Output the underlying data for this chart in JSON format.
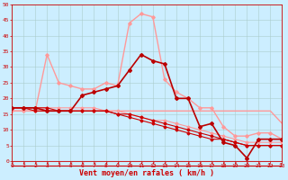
{
  "bg_color": "#cceeff",
  "grid_color": "#aacccc",
  "xlabel": "Vent moyen/en rafales ( km/h )",
  "xlabel_color": "#cc0000",
  "xlabel_fontsize": 6,
  "xtick_labels": [
    "0",
    "1",
    "2",
    "3",
    "4",
    "5",
    "6",
    "7",
    "8",
    "9",
    "10",
    "11",
    "12",
    "13",
    "14",
    "15",
    "16",
    "17",
    "18",
    "19",
    "20",
    "21",
    "22",
    "23"
  ],
  "ytick_labels": [
    "0",
    "5",
    "10",
    "15",
    "20",
    "25",
    "30",
    "35",
    "40",
    "45",
    "50"
  ],
  "ylim": [
    0,
    50
  ],
  "xlim": [
    0,
    23
  ],
  "line_pink_flat_x": [
    0,
    1,
    2,
    3,
    4,
    5,
    6,
    7,
    8,
    9,
    10,
    11,
    12,
    13,
    14,
    15,
    16,
    17,
    18,
    19,
    20,
    21,
    22,
    23
  ],
  "line_pink_flat_y": [
    16,
    16,
    16,
    16,
    16,
    16,
    16,
    16,
    16,
    16,
    16,
    16,
    16,
    16,
    16,
    16,
    16,
    16,
    16,
    16,
    16,
    16,
    16,
    12
  ],
  "line_pink_flat_color": "#ff9999",
  "line_pink_flat_lw": 1.0,
  "line_dark_red_x": [
    0,
    1,
    2,
    3,
    4,
    5,
    6,
    7,
    8,
    9,
    10,
    11,
    12,
    13,
    14,
    15,
    16,
    17,
    18,
    19,
    20,
    21,
    22,
    23
  ],
  "line_dark_red_y": [
    17,
    17,
    17,
    16,
    16,
    16,
    21,
    22,
    23,
    24,
    29,
    34,
    32,
    31,
    20,
    20,
    11,
    12,
    6,
    5,
    1,
    7,
    7,
    7
  ],
  "line_dark_red_color": "#bb0000",
  "line_dark_red_lw": 1.2,
  "line_pink_peak_x": [
    0,
    1,
    2,
    3,
    4,
    5,
    6,
    7,
    8,
    9,
    10,
    11,
    12,
    13,
    14,
    15,
    16,
    17,
    18,
    19,
    20,
    21,
    22,
    23
  ],
  "line_pink_peak_y": [
    16,
    16,
    16,
    34,
    25,
    24,
    23,
    23,
    25,
    24,
    44,
    47,
    46,
    26,
    22,
    20,
    17,
    17,
    11,
    8,
    8,
    9,
    9,
    7
  ],
  "line_pink_peak_color": "#ff9999",
  "line_pink_peak_lw": 1.0,
  "line_red_diag1_x": [
    0,
    1,
    2,
    3,
    4,
    5,
    6,
    7,
    8,
    9,
    10,
    11,
    12,
    13,
    14,
    15,
    16,
    17,
    18,
    19,
    20,
    21,
    22,
    23
  ],
  "line_red_diag1_y": [
    17,
    17,
    17,
    17,
    16,
    16,
    16,
    16,
    16,
    15,
    15,
    14,
    13,
    12,
    11,
    10,
    9,
    8,
    7,
    6,
    5,
    5,
    5,
    5
  ],
  "line_red_diag1_color": "#cc0000",
  "line_red_diag1_lw": 0.8,
  "line_pink_diag2_x": [
    0,
    1,
    2,
    3,
    4,
    5,
    6,
    7,
    8,
    9,
    10,
    11,
    12,
    13,
    14,
    15,
    16,
    17,
    18,
    19,
    20,
    21,
    22,
    23
  ],
  "line_pink_diag2_y": [
    17,
    17,
    17,
    17,
    17,
    17,
    17,
    17,
    16,
    16,
    15,
    14,
    13,
    13,
    12,
    11,
    10,
    9,
    8,
    7,
    6,
    6,
    6,
    6
  ],
  "line_pink_diag2_color": "#ff9999",
  "line_pink_diag2_lw": 0.8,
  "line_red_diag3_x": [
    0,
    1,
    2,
    3,
    4,
    5,
    6,
    7,
    8,
    9,
    10,
    11,
    12,
    13,
    14,
    15,
    16,
    17,
    18,
    19,
    20,
    21,
    22,
    23
  ],
  "line_red_diag3_y": [
    17,
    17,
    16,
    16,
    16,
    16,
    16,
    16,
    16,
    15,
    14,
    13,
    12,
    11,
    10,
    9,
    8,
    7,
    7,
    6,
    5,
    5,
    5,
    5
  ],
  "line_red_diag3_color": "#cc0000",
  "line_red_diag3_lw": 0.8,
  "tick_color": "#cc0000",
  "tick_fontsize": 4.5,
  "arrow_angles": [
    210,
    210,
    210,
    210,
    210,
    210,
    210,
    210,
    210,
    210,
    210,
    210,
    210,
    210,
    210,
    210,
    210,
    210,
    210,
    210,
    210,
    210,
    30,
    30
  ]
}
